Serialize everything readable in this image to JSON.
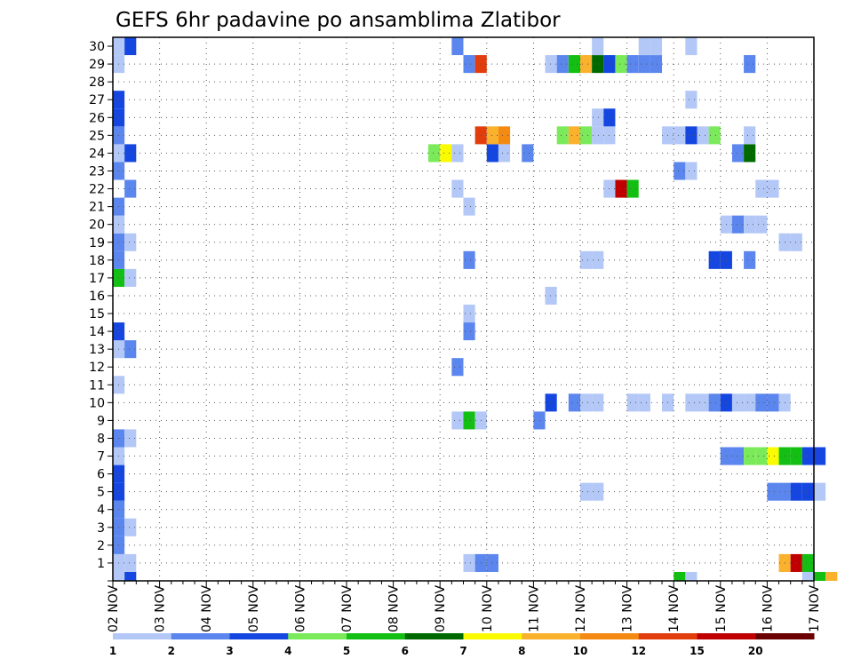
{
  "chart_data": {
    "type": "heatmap",
    "title": "GEFS 6hr padavine po ansamblima Zlatibor",
    "xlabel": "",
    "ylabel": "",
    "x_ticks": [
      "02 NOV",
      "03 NOV",
      "04 NOV",
      "05 NOV",
      "06 NOV",
      "07 NOV",
      "08 NOV",
      "09 NOV",
      "10 NOV",
      "11 NOV",
      "12 NOV",
      "13 NOV",
      "14 NOV",
      "15 NOV",
      "16 NOV",
      "17 NOV"
    ],
    "x_range": [
      "02 NOV 00h",
      "17 NOV 00h"
    ],
    "x_step_hours": 6,
    "y_ticks": [
      1,
      2,
      3,
      4,
      5,
      6,
      7,
      8,
      9,
      10,
      11,
      12,
      13,
      14,
      15,
      16,
      17,
      18,
      19,
      20,
      21,
      22,
      23,
      24,
      25,
      26,
      27,
      28,
      29,
      30
    ],
    "ylim": [
      0,
      30
    ],
    "grid": true,
    "colorbar": {
      "labels": [
        "1",
        "2",
        "3",
        "4",
        "5",
        "6",
        "7",
        "8",
        "10",
        "12",
        "15",
        "20"
      ],
      "colors": [
        "#b3c8f7",
        "#5b86ee",
        "#1547e0",
        "#7bea5a",
        "#12bf12",
        "#006a00",
        "#fafa00",
        "#f9b12e",
        "#f58a12",
        "#e23e0d",
        "#c00000",
        "#6b0000"
      ]
    },
    "cells_note": "each cell: [member, step index from 02 NOV 00h in 6h steps, color class 1-12]",
    "cells": [
      [
        0,
        1,
        1
      ],
      [
        0,
        2,
        3
      ],
      [
        0,
        49,
        5
      ],
      [
        0,
        50,
        1
      ],
      [
        0,
        60,
        1
      ],
      [
        0,
        61,
        5
      ],
      [
        0,
        62,
        8
      ],
      [
        1,
        1,
        1
      ],
      [
        1,
        2,
        1
      ],
      [
        1,
        31,
        1
      ],
      [
        1,
        32,
        2
      ],
      [
        1,
        33,
        2
      ],
      [
        1,
        58,
        8
      ],
      [
        1,
        59,
        11
      ],
      [
        1,
        60,
        5
      ],
      [
        2,
        1,
        2
      ],
      [
        3,
        1,
        2
      ],
      [
        3,
        2,
        1
      ],
      [
        4,
        1,
        2
      ],
      [
        5,
        1,
        3
      ],
      [
        5,
        41,
        1
      ],
      [
        5,
        42,
        1
      ],
      [
        5,
        57,
        2
      ],
      [
        5,
        58,
        2
      ],
      [
        5,
        59,
        3
      ],
      [
        5,
        60,
        3
      ],
      [
        5,
        61,
        1
      ],
      [
        6,
        1,
        3
      ],
      [
        7,
        1,
        1
      ],
      [
        7,
        53,
        2
      ],
      [
        7,
        54,
        2
      ],
      [
        7,
        55,
        4
      ],
      [
        7,
        56,
        4
      ],
      [
        7,
        57,
        7
      ],
      [
        7,
        58,
        5
      ],
      [
        7,
        59,
        5
      ],
      [
        7,
        60,
        3
      ],
      [
        7,
        61,
        3
      ],
      [
        8,
        1,
        2
      ],
      [
        8,
        2,
        1
      ],
      [
        9,
        30,
        1
      ],
      [
        9,
        31,
        5
      ],
      [
        9,
        32,
        1
      ],
      [
        9,
        37,
        2
      ],
      [
        10,
        38,
        3
      ],
      [
        10,
        40,
        2
      ],
      [
        10,
        41,
        1
      ],
      [
        10,
        42,
        1
      ],
      [
        10,
        45,
        1
      ],
      [
        10,
        46,
        1
      ],
      [
        10,
        48,
        1
      ],
      [
        10,
        50,
        1
      ],
      [
        10,
        51,
        1
      ],
      [
        10,
        52,
        2
      ],
      [
        10,
        53,
        3
      ],
      [
        10,
        54,
        1
      ],
      [
        10,
        55,
        1
      ],
      [
        10,
        56,
        2
      ],
      [
        10,
        57,
        2
      ],
      [
        10,
        58,
        1
      ],
      [
        11,
        1,
        1
      ],
      [
        12,
        30,
        2
      ],
      [
        13,
        1,
        1
      ],
      [
        13,
        2,
        2
      ],
      [
        14,
        1,
        3
      ],
      [
        14,
        31,
        2
      ],
      [
        15,
        31,
        1
      ],
      [
        16,
        38,
        1
      ],
      [
        17,
        1,
        5
      ],
      [
        17,
        2,
        1
      ],
      [
        18,
        1,
        2
      ],
      [
        18,
        31,
        2
      ],
      [
        18,
        41,
        1
      ],
      [
        18,
        42,
        1
      ],
      [
        18,
        52,
        3
      ],
      [
        18,
        53,
        3
      ],
      [
        18,
        55,
        2
      ],
      [
        19,
        1,
        2
      ],
      [
        19,
        2,
        1
      ],
      [
        19,
        58,
        1
      ],
      [
        19,
        59,
        1
      ],
      [
        20,
        1,
        1
      ],
      [
        20,
        53,
        1
      ],
      [
        20,
        54,
        2
      ],
      [
        20,
        55,
        1
      ],
      [
        20,
        56,
        1
      ],
      [
        21,
        1,
        2
      ],
      [
        21,
        31,
        1
      ],
      [
        22,
        2,
        2
      ],
      [
        22,
        30,
        1
      ],
      [
        22,
        43,
        1
      ],
      [
        22,
        44,
        11
      ],
      [
        22,
        45,
        5
      ],
      [
        22,
        56,
        1
      ],
      [
        22,
        57,
        1
      ],
      [
        23,
        1,
        2
      ],
      [
        23,
        49,
        2
      ],
      [
        23,
        50,
        1
      ],
      [
        24,
        1,
        1
      ],
      [
        24,
        2,
        3
      ],
      [
        24,
        28,
        4
      ],
      [
        24,
        29,
        7
      ],
      [
        24,
        30,
        1
      ],
      [
        24,
        33,
        3
      ],
      [
        24,
        34,
        1
      ],
      [
        24,
        36,
        2
      ],
      [
        24,
        54,
        2
      ],
      [
        24,
        55,
        6
      ],
      [
        25,
        1,
        2
      ],
      [
        25,
        32,
        10
      ],
      [
        25,
        33,
        8
      ],
      [
        25,
        34,
        9
      ],
      [
        25,
        39,
        4
      ],
      [
        25,
        40,
        8
      ],
      [
        25,
        41,
        4
      ],
      [
        25,
        42,
        1
      ],
      [
        25,
        43,
        1
      ],
      [
        25,
        48,
        1
      ],
      [
        25,
        49,
        1
      ],
      [
        25,
        50,
        3
      ],
      [
        25,
        51,
        1
      ],
      [
        25,
        52,
        4
      ],
      [
        25,
        55,
        1
      ],
      [
        26,
        1,
        3
      ],
      [
        26,
        42,
        1
      ],
      [
        26,
        43,
        3
      ],
      [
        27,
        1,
        3
      ],
      [
        27,
        50,
        1
      ],
      [
        29,
        1,
        1
      ],
      [
        29,
        31,
        2
      ],
      [
        29,
        32,
        10
      ],
      [
        29,
        38,
        1
      ],
      [
        29,
        39,
        2
      ],
      [
        29,
        40,
        5
      ],
      [
        29,
        41,
        8
      ],
      [
        29,
        42,
        6
      ],
      [
        29,
        43,
        3
      ],
      [
        29,
        44,
        4
      ],
      [
        29,
        45,
        2
      ],
      [
        29,
        46,
        2
      ],
      [
        29,
        47,
        2
      ],
      [
        29,
        55,
        2
      ],
      [
        30,
        1,
        1
      ],
      [
        30,
        2,
        3
      ],
      [
        30,
        30,
        2
      ],
      [
        30,
        42,
        1
      ],
      [
        30,
        46,
        1
      ],
      [
        30,
        47,
        1
      ],
      [
        30,
        50,
        1
      ]
    ]
  }
}
